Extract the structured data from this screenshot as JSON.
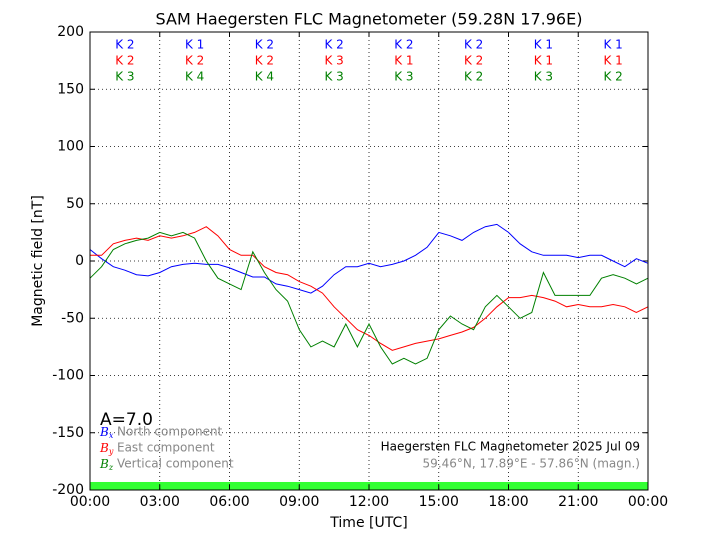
{
  "chart_data": {
    "type": "line",
    "title": "SAM Haegersten FLC Magnetometer (59.28N 17.96E)",
    "xlabel": "Time [UTC]",
    "ylabel": "Magnetic field [nT]",
    "xlim": [
      0,
      24
    ],
    "xticks": [
      {
        "value": 0,
        "label": "00:00"
      },
      {
        "value": 3,
        "label": "03:00"
      },
      {
        "value": 6,
        "label": "06:00"
      },
      {
        "value": 9,
        "label": "09:00"
      },
      {
        "value": 12,
        "label": "12:00"
      },
      {
        "value": 15,
        "label": "15:00"
      },
      {
        "value": 18,
        "label": "18:00"
      },
      {
        "value": 21,
        "label": "21:00"
      },
      {
        "value": 24,
        "label": "00:00"
      }
    ],
    "ylim": [
      -200,
      200
    ],
    "yticks": [
      -200,
      -150,
      -100,
      -50,
      0,
      50,
      100,
      150,
      200
    ],
    "grid": true,
    "x": [
      0,
      0.5,
      1,
      1.5,
      2,
      2.5,
      3,
      3.5,
      4,
      4.5,
      5,
      5.5,
      6,
      6.5,
      7,
      7.5,
      8,
      8.5,
      9,
      9.5,
      10,
      10.5,
      11,
      11.5,
      12,
      12.5,
      13,
      13.5,
      14,
      14.5,
      15,
      15.5,
      16,
      16.5,
      17,
      17.5,
      18,
      18.5,
      19,
      19.5,
      20,
      20.5,
      21,
      21.5,
      22,
      22.5,
      23,
      23.5,
      24
    ],
    "series": [
      {
        "name": "North component",
        "symbol": "B",
        "subscript": "x",
        "color": "#0000ff",
        "values": [
          10,
          2,
          -5,
          -8,
          -12,
          -13,
          -10,
          -5,
          -3,
          -2,
          -3,
          -3,
          -6,
          -10,
          -14,
          -14,
          -20,
          -22,
          -25,
          -28,
          -22,
          -12,
          -5,
          -5,
          -2,
          -5,
          -3,
          0,
          5,
          12,
          25,
          22,
          18,
          25,
          30,
          32,
          25,
          15,
          8,
          5,
          5,
          5,
          3,
          5,
          5,
          0,
          -5,
          2,
          -2
        ]
      },
      {
        "name": "East component",
        "symbol": "B",
        "subscript": "y",
        "color": "#ff0000",
        "values": [
          5,
          5,
          15,
          18,
          20,
          18,
          22,
          20,
          22,
          25,
          30,
          22,
          10,
          5,
          5,
          -5,
          -10,
          -12,
          -18,
          -22,
          -28,
          -40,
          -50,
          -60,
          -65,
          -72,
          -78,
          -75,
          -72,
          -70,
          -68,
          -65,
          -62,
          -58,
          -50,
          -40,
          -32,
          -32,
          -30,
          -32,
          -35,
          -40,
          -38,
          -40,
          -40,
          -38,
          -40,
          -45,
          -40
        ]
      },
      {
        "name": "Vertical component",
        "symbol": "B",
        "subscript": "z",
        "color": "#008000",
        "values": [
          -15,
          -5,
          10,
          15,
          18,
          20,
          25,
          22,
          25,
          20,
          0,
          -15,
          -20,
          -25,
          8,
          -10,
          -25,
          -35,
          -60,
          -75,
          -70,
          -75,
          -55,
          -75,
          -55,
          -75,
          -90,
          -85,
          -90,
          -85,
          -60,
          -48,
          -55,
          -60,
          -40,
          -30,
          -40,
          -50,
          -45,
          -10,
          -30,
          -30,
          -30,
          -30,
          -15,
          -12,
          -15,
          -20,
          -15
        ]
      }
    ],
    "k_rows": [
      {
        "color": "#0000ff",
        "labels": [
          "K 2",
          "K 1",
          "K 2",
          "K 2",
          "K 2",
          "K 2",
          "K 1",
          "K 1"
        ]
      },
      {
        "color": "#ff0000",
        "labels": [
          "K 2",
          "K 2",
          "K 2",
          "K 3",
          "K 1",
          "K 2",
          "K 1",
          "K 1"
        ]
      },
      {
        "color": "#008000",
        "labels": [
          "K 3",
          "K 4",
          "K 4",
          "K 3",
          "K 3",
          "K 2",
          "K 3",
          "K 2"
        ]
      }
    ],
    "a_index": "A=7.0",
    "band": {
      "from": -200,
      "to": -193,
      "color": "#33ff33"
    },
    "station_note": "Haegersten FLC Magnetometer 2025 Jul 09",
    "coords_note": "59.46°N, 17.89°E - 57.86°N (magn.)"
  }
}
